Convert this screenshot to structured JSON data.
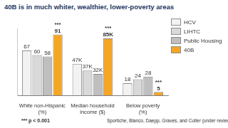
{
  "chart_data": {
    "type": "bar",
    "title": "40B is in much whiter, wealthier, lower-poverty areas",
    "categories": [
      "White non-Hispanic (%)",
      "Median household income ($)",
      "Below poverty (%)"
    ],
    "series": [
      {
        "name": "HCV",
        "color": "#f2f2f2",
        "values": [
          67,
          47,
          18
        ],
        "value_labels": [
          "67",
          "47K",
          "18"
        ]
      },
      {
        "name": "LIHTC",
        "color": "#d9d9d9",
        "values": [
          60,
          37,
          24
        ],
        "value_labels": [
          "60",
          "37K",
          "24"
        ]
      },
      {
        "name": "Public Housing",
        "color": "#bfbfbf",
        "values": [
          58,
          32,
          28
        ],
        "value_labels": [
          "58",
          "32K",
          "28"
        ]
      },
      {
        "name": "40B",
        "color": "#f5a623",
        "values": [
          91,
          85,
          5
        ],
        "value_labels": [
          "91",
          "85K",
          "5"
        ]
      }
    ],
    "annotations": [
      {
        "text": "***",
        "category": "White non-Hispanic (%)",
        "series": "40B"
      },
      {
        "text": "***",
        "category": "Median household income ($)",
        "series": "40B"
      },
      {
        "text": "***",
        "category": "Below poverty (%)",
        "series": "40B"
      }
    ],
    "footnote": "*** p < 0.001",
    "source": "Sportiche, Blanco, Daepp, Graves, and Cutler (under review)",
    "ylim": [
      0,
      100
    ],
    "grid": false,
    "legend": "upper right",
    "data_labels": true,
    "tick_labels": "x"
  }
}
